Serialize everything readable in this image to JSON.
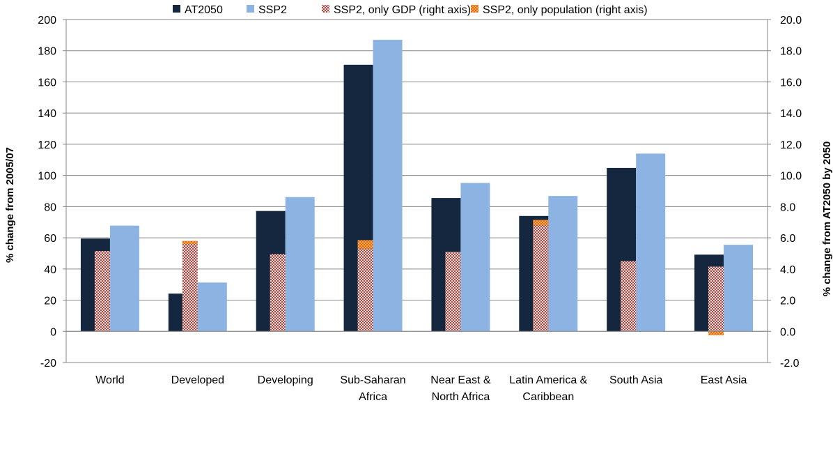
{
  "chart_data": {
    "type": "bar",
    "categories": [
      [
        "World"
      ],
      [
        "Developed"
      ],
      [
        "Developing"
      ],
      [
        "Sub-Saharan",
        "Africa"
      ],
      [
        "Near East &",
        "North Africa"
      ],
      [
        "Latin America &",
        "Caribbean"
      ],
      [
        "South Asia"
      ],
      [
        "East Asia"
      ]
    ],
    "series": [
      {
        "name": "AT2050",
        "axis": "left",
        "color": "#14273F",
        "values": [
          59.5,
          24.2,
          77.2,
          171.0,
          85.5,
          74.0,
          104.8,
          49.2
        ]
      },
      {
        "name": "SSP2",
        "axis": "left",
        "color": "#8DB3E2",
        "values": [
          67.8,
          31.3,
          86.1,
          187.0,
          95.2,
          86.8,
          114.0,
          55.5
        ]
      }
    ],
    "stacked_series": [
      {
        "name": "SSP2, only GDP (right axis)",
        "axis": "right",
        "pattern": "checker-red",
        "values": [
          5.15,
          5.6,
          4.95,
          5.3,
          5.1,
          6.8,
          4.5,
          4.15
        ]
      },
      {
        "name": "SSP2, only population (right axis)",
        "axis": "right",
        "pattern": "checker-orange",
        "values": [
          0.0,
          0.2,
          0.0,
          0.55,
          0.0,
          0.35,
          0.0,
          -0.25
        ]
      }
    ],
    "ylabel": "% change from 2005/07",
    "y2label": "% change from AT2050 by 2050",
    "ylim": [
      -20,
      200
    ],
    "y2lim": [
      -2.0,
      20.0
    ],
    "yticks": [
      "-20",
      "0",
      "20",
      "40",
      "60",
      "80",
      "100",
      "120",
      "140",
      "160",
      "180",
      "200"
    ],
    "y2ticks": [
      "-2.0",
      "0.0",
      "2.0",
      "4.0",
      "6.0",
      "8.0",
      "10.0",
      "12.0",
      "14.0",
      "16.0",
      "18.0",
      "20.0"
    ],
    "grid": true,
    "legend": {
      "position": "top",
      "entries": [
        "AT2050",
        "SSP2",
        "SSP2, only GDP (right axis)",
        "SSP2, only population (right axis)"
      ]
    }
  }
}
